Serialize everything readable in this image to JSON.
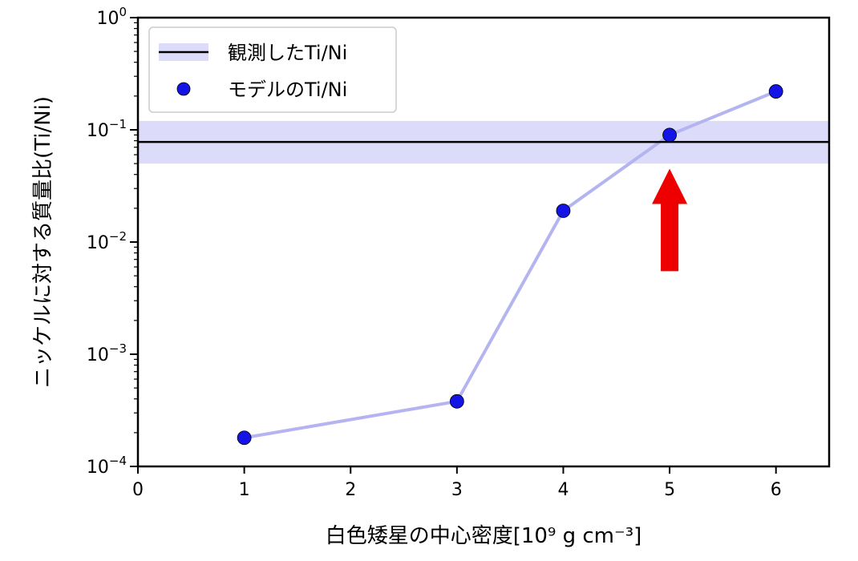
{
  "chart_data": {
    "type": "scatter",
    "xlabel": "白色矮星の中心密度[10⁹ g cm⁻³]",
    "ylabel": "ニッケルに対する質量比(Ti/Ni)",
    "xlim": [
      0,
      6.5
    ],
    "ylim": [
      0.0001,
      1
    ],
    "yscale": "log",
    "x_ticks": [
      0,
      1,
      2,
      3,
      4,
      5,
      6
    ],
    "y_ticks": [
      {
        "value": 0.0001,
        "base": "10",
        "exp": "−4"
      },
      {
        "value": 0.001,
        "base": "10",
        "exp": "−3"
      },
      {
        "value": 0.01,
        "base": "10",
        "exp": "−2"
      },
      {
        "value": 0.1,
        "base": "10",
        "exp": "−1"
      },
      {
        "value": 1,
        "base": "10",
        "exp": "0"
      }
    ],
    "grid": false,
    "legend_position": "top-left",
    "observed": {
      "name": "観測したTi/Ni",
      "value": 0.078,
      "band": [
        0.05,
        0.12
      ],
      "line_color": "#000000",
      "band_color": "#dcdcfa"
    },
    "series": [
      {
        "name": "モデルのTi/Ni",
        "x": [
          1,
          3,
          4,
          5,
          6
        ],
        "y": [
          0.00018,
          0.00038,
          0.019,
          0.09,
          0.22
        ],
        "marker_color": "#1414e6",
        "line_color": "#b4b4f0"
      }
    ],
    "annotation": {
      "type": "arrow",
      "x": 5,
      "y_from": 0.0055,
      "y_to": 0.045,
      "color": "#ee0000"
    }
  }
}
